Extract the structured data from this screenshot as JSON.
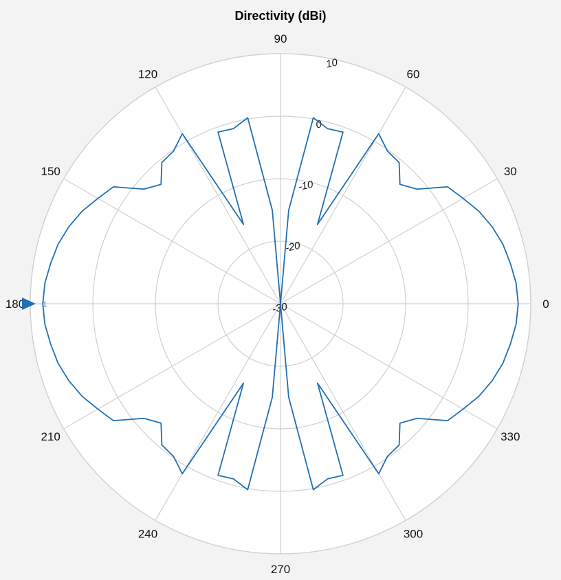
{
  "chart_data": {
    "type": "polar-line",
    "title": "Directivity (dBi)",
    "angle_ticks": [
      "0",
      "30",
      "60",
      "90",
      "120",
      "150",
      "180",
      "210",
      "240",
      "270",
      "300",
      "330"
    ],
    "angle_tick_values": [
      0,
      30,
      60,
      90,
      120,
      150,
      180,
      210,
      240,
      270,
      300,
      330
    ],
    "radial_ticks": [
      "-30",
      "-20",
      "-10",
      "0",
      "10"
    ],
    "radial_tick_values": [
      -30,
      -20,
      -10,
      0,
      10
    ],
    "rlim": [
      -30,
      10
    ],
    "grid": true,
    "marker_label": "1",
    "marker_angle": 180,
    "series": [
      {
        "color": "#1f6fb5",
        "points": [
          [
            0,
            8.0
          ],
          [
            5,
            7.8
          ],
          [
            10,
            7.3
          ],
          [
            15,
            6.8
          ],
          [
            20,
            6.0
          ],
          [
            25,
            5.0
          ],
          [
            30,
            3.7
          ],
          [
            35,
            2.6
          ],
          [
            40,
            -1.5
          ],
          [
            45,
            -3.0
          ],
          [
            50,
            -0.5
          ],
          [
            55,
            -0.2
          ],
          [
            60,
            1.4
          ],
          [
            65,
            -16.0
          ],
          [
            70,
            -0.8
          ],
          [
            75,
            -1.0
          ],
          [
            80,
            0.2
          ],
          [
            85,
            -15.0
          ],
          [
            90,
            -30
          ],
          [
            95,
            -15.0
          ],
          [
            100,
            0.2
          ],
          [
            105,
            -1.0
          ],
          [
            110,
            -0.8
          ],
          [
            115,
            -16.0
          ],
          [
            120,
            1.4
          ],
          [
            125,
            -0.2
          ],
          [
            130,
            -0.5
          ],
          [
            135,
            -3.0
          ],
          [
            140,
            -1.5
          ],
          [
            145,
            2.6
          ],
          [
            150,
            3.7
          ],
          [
            155,
            5.0
          ],
          [
            160,
            6.0
          ],
          [
            165,
            6.8
          ],
          [
            170,
            7.3
          ],
          [
            175,
            7.8
          ],
          [
            180,
            8.0
          ],
          [
            185,
            7.8
          ],
          [
            190,
            7.3
          ],
          [
            195,
            6.8
          ],
          [
            200,
            6.0
          ],
          [
            205,
            5.0
          ],
          [
            210,
            3.7
          ],
          [
            215,
            2.6
          ],
          [
            220,
            -1.5
          ],
          [
            225,
            -3.0
          ],
          [
            230,
            -0.5
          ],
          [
            235,
            -0.2
          ],
          [
            240,
            1.4
          ],
          [
            245,
            -16.0
          ],
          [
            250,
            -0.8
          ],
          [
            255,
            -1.0
          ],
          [
            260,
            0.2
          ],
          [
            265,
            -15.0
          ],
          [
            270,
            -30
          ],
          [
            275,
            -15.0
          ],
          [
            280,
            0.2
          ],
          [
            285,
            -1.0
          ],
          [
            290,
            -0.8
          ],
          [
            295,
            -16.0
          ],
          [
            300,
            1.4
          ],
          [
            305,
            -0.2
          ],
          [
            310,
            -0.5
          ],
          [
            315,
            -3.0
          ],
          [
            320,
            -1.5
          ],
          [
            325,
            2.6
          ],
          [
            330,
            3.7
          ],
          [
            335,
            5.0
          ],
          [
            340,
            6.0
          ],
          [
            345,
            6.8
          ],
          [
            350,
            7.3
          ],
          [
            355,
            7.8
          ],
          [
            360,
            8.0
          ]
        ]
      }
    ]
  },
  "colors": {
    "background": "#f3f3f3",
    "plot_area": "#ffffff",
    "grid": "#d0d0d0",
    "series": "#1f6fb5"
  }
}
